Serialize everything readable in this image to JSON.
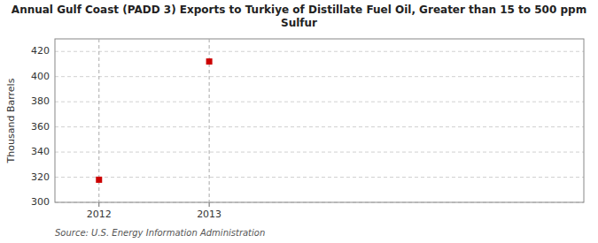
{
  "chart_data": {
    "type": "scatter",
    "title": "Annual Gulf Coast (PADD 3) Exports to Turkiye of Distillate Fuel Oil, Greater than 15 to 500 ppm\nSulfur",
    "y_label": "Thousand Barrels",
    "annotations": [
      "Source: U.S. Energy Information Administration"
    ],
    "x": [
      2012,
      2013
    ],
    "values": [
      318,
      412
    ],
    "color": "#cc0000",
    "marker": "square",
    "xlim": [
      2011.6,
      2016.4
    ],
    "ylim": [
      300,
      430
    ],
    "xticks": [
      2012,
      2013
    ],
    "yticks": [
      300,
      320,
      340,
      360,
      380,
      400,
      420
    ],
    "grid": true
  }
}
